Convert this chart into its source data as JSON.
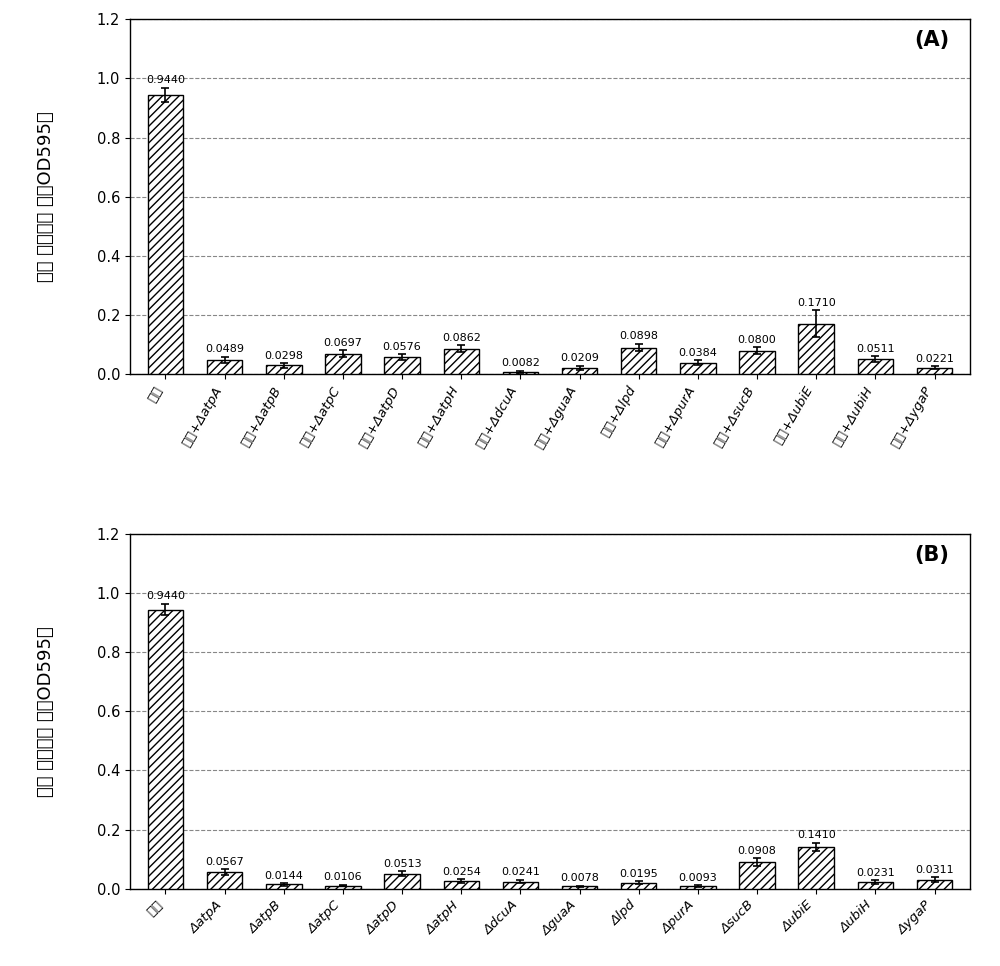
{
  "panel_A": {
    "categories": [
      "枸草",
      "枸草+ΔatpA",
      "枸草+ΔatpB",
      "枸草+ΔatpC",
      "枸草+ΔatpD",
      "枸草+ΔatpH",
      "枸草+ΔdcuA",
      "枸草+ΔguaA",
      "枸草+Δlpd",
      "枸草+ΔpurA",
      "枸草+ΔsucB",
      "枸草+ΔubiE",
      "枸草+ΔubiH",
      "枸草+ΔygaP"
    ],
    "values": [
      0.944,
      0.0489,
      0.0298,
      0.0697,
      0.0576,
      0.0862,
      0.0082,
      0.0209,
      0.0898,
      0.0384,
      0.08,
      0.171,
      0.0511,
      0.0221
    ],
    "errors": [
      0.025,
      0.01,
      0.008,
      0.012,
      0.01,
      0.012,
      0.003,
      0.008,
      0.013,
      0.008,
      0.012,
      0.045,
      0.009,
      0.006
    ],
    "label": "(A)",
    "rotate_labels": 60
  },
  "panel_B": {
    "categories": [
      "枸草",
      "ΔatpA",
      "ΔatpB",
      "ΔatpC",
      "ΔatpD",
      "ΔatpH",
      "ΔdcuA",
      "ΔguaA",
      "Δlpd",
      "ΔpurA",
      "ΔsucB",
      "ΔubiE",
      "ΔubiH",
      "ΔygaP"
    ],
    "values": [
      0.944,
      0.0567,
      0.0144,
      0.0106,
      0.0513,
      0.0254,
      0.0241,
      0.0078,
      0.0195,
      0.0093,
      0.0908,
      0.141,
      0.0231,
      0.0311
    ],
    "errors": [
      0.02,
      0.01,
      0.004,
      0.003,
      0.008,
      0.006,
      0.006,
      0.002,
      0.005,
      0.003,
      0.013,
      0.015,
      0.006,
      0.007
    ],
    "label": "(B)",
    "rotate_labels": 45
  },
  "ylabel_chinese": "结晶 紫光吸收 值（OD",
  "ylabel_sub": "595",
  "ylabel_suffix": "）",
  "ylim": [
    0,
    1.2
  ],
  "yticks": [
    0.0,
    0.2,
    0.4,
    0.6,
    0.8,
    1.0,
    1.2
  ],
  "hatch_pattern": "////",
  "bar_color": "white",
  "bar_edgecolor": "black",
  "bar_linewidth": 1.0,
  "error_color": "black",
  "background_color": "white",
  "annotation_fontsize": 8.0,
  "ylabel_fontsize": 13,
  "tick_fontsize": 9.5,
  "panel_label_fontsize": 15,
  "grid_color": "#555555",
  "grid_alpha": 0.7,
  "grid_linewidth": 0.8
}
